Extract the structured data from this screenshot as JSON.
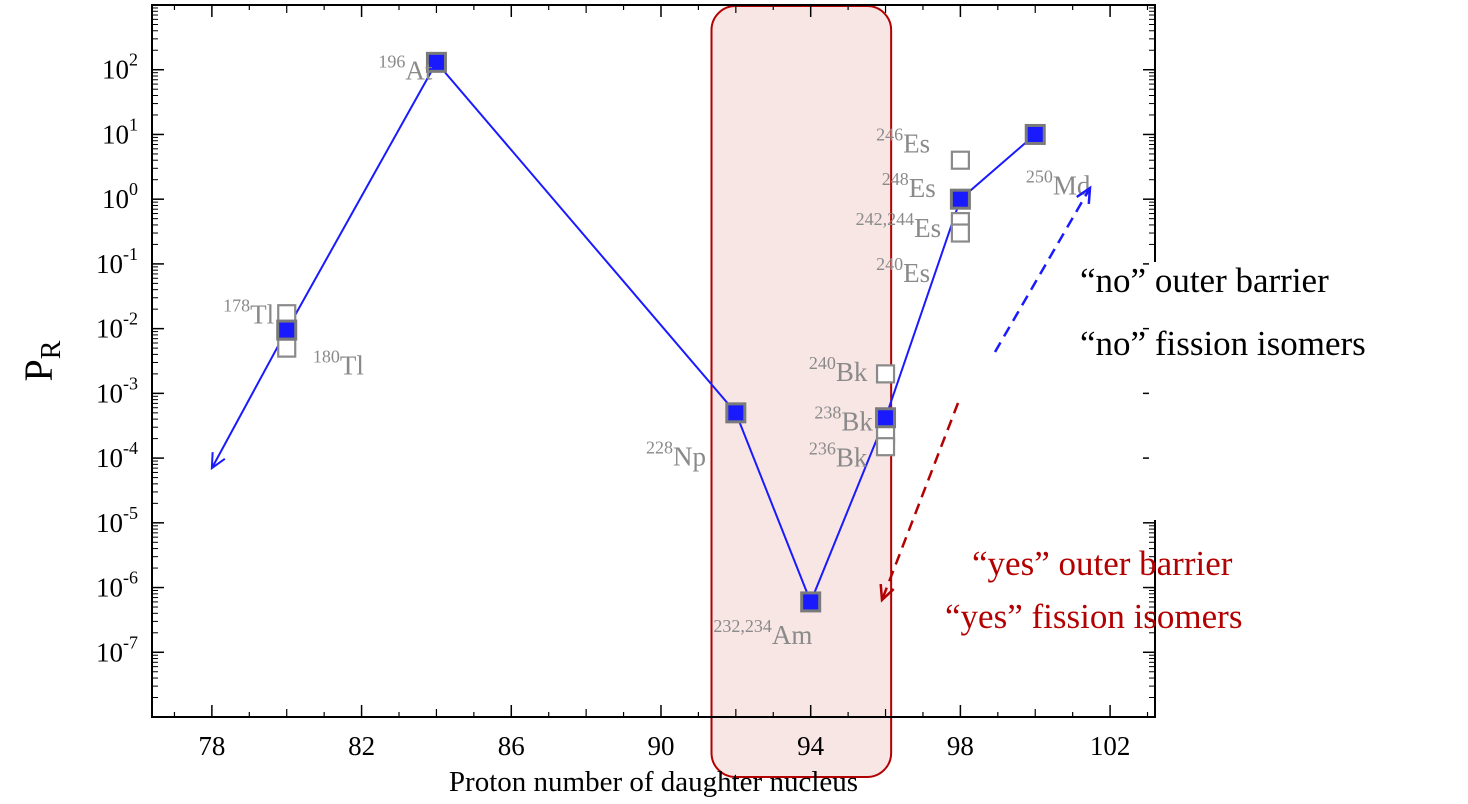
{
  "chart_data": {
    "type": "scatter",
    "xlabel": "Proton number of daughter nucleus",
    "ylabel": "P",
    "ylabel_sub": "R",
    "xlim": [
      76.4,
      103.2
    ],
    "ylim_log10": [
      -8,
      3
    ],
    "y_scale": "log",
    "x_ticks": [
      78,
      82,
      86,
      90,
      94,
      98,
      102
    ],
    "x_tick_labels": [
      "78",
      "82",
      "86",
      "90",
      "94",
      "98",
      "102"
    ],
    "y_ticks": [
      {
        "base": "10",
        "exp": "2",
        "log": 2
      },
      {
        "base": "10",
        "exp": "1",
        "log": 1
      },
      {
        "base": "10",
        "exp": "0",
        "log": 0
      },
      {
        "base": "10",
        "exp": "-1",
        "log": -1
      },
      {
        "base": "10",
        "exp": "-2",
        "log": -2
      },
      {
        "base": "10",
        "exp": "-3",
        "log": -3
      },
      {
        "base": "10",
        "exp": "-4",
        "log": -4
      },
      {
        "base": "10",
        "exp": "-5",
        "log": -5
      },
      {
        "base": "10",
        "exp": "-6",
        "log": -6
      },
      {
        "base": "10",
        "exp": "-7",
        "log": -7
      }
    ],
    "colors": {
      "filled_marker": "#1a1aff",
      "marker_edge": "#7a7a7a",
      "line": "#1a1aff",
      "open_marker": "#8a8a8a",
      "highlight_fill": "#f7e6e4",
      "highlight_edge": "#b30000",
      "red_arrow": "#b30000",
      "blue_arrow": "#1a1aff"
    },
    "series": [
      {
        "marker": "filled-square",
        "points": [
          {
            "x": 80,
            "y": 0.0095
          },
          {
            "x": 84,
            "y": 130
          },
          {
            "x": 92,
            "y": 0.0005
          },
          {
            "x": 94,
            "y": 6e-07
          },
          {
            "x": 96,
            "y": 0.00042
          },
          {
            "x": 98,
            "y": 1.0
          },
          {
            "x": 100,
            "y": 10
          }
        ]
      },
      {
        "marker": "open-square",
        "points": [
          {
            "x": 80,
            "y": 0.017
          },
          {
            "x": 80,
            "y": 0.005
          },
          {
            "x": 96,
            "y": 0.002
          },
          {
            "x": 96,
            "y": 0.00024
          },
          {
            "x": 96,
            "y": 0.00015
          },
          {
            "x": 98,
            "y": 4
          },
          {
            "x": 98,
            "y": 0.45
          },
          {
            "x": 98,
            "y": 0.3
          }
        ]
      }
    ],
    "arrow_extension": {
      "from": {
        "x": 80,
        "y": 0.0095
      },
      "to": {
        "x": 78,
        "y": 7e-05
      }
    },
    "isotope_labels": [
      {
        "mass": "196",
        "symbol": "At",
        "x": 82.45,
        "y": 100
      },
      {
        "mass": "178",
        "symbol": "Tl",
        "x": 78.3,
        "y": 0.017
      },
      {
        "mass": "180",
        "symbol": "Tl",
        "x": 80.7,
        "y": 0.0028
      },
      {
        "mass": "228",
        "symbol": "Np",
        "x": 89.6,
        "y": 0.00011
      },
      {
        "mass": "232,234",
        "symbol": "Am",
        "x": 91.4,
        "y": 1.9e-07
      },
      {
        "mass": "246",
        "symbol": "Es",
        "x": 95.75,
        "y": 7.5
      },
      {
        "mass": "248",
        "symbol": "Es",
        "x": 95.9,
        "y": 1.55
      },
      {
        "mass": "242,244",
        "symbol": "Es",
        "x": 95.2,
        "y": 0.37
      },
      {
        "mass": "240",
        "symbol": "Es",
        "x": 95.75,
        "y": 0.075
      },
      {
        "mass": "240",
        "symbol": "Bk",
        "x": 93.95,
        "y": 0.0022
      },
      {
        "mass": "238",
        "symbol": "Bk",
        "x": 94.1,
        "y": 0.00038
      },
      {
        "mass": "236",
        "symbol": "Bk",
        "x": 93.95,
        "y": 0.000105
      },
      {
        "mass": "250",
        "symbol": "Md",
        "x": 99.75,
        "y": 1.7
      }
    ],
    "annotations": {
      "no_outer_barrier": "“no” outer barrier",
      "no_fission_isomers": "“no” fission isomers",
      "yes_outer_barrier": "“yes” outer barrier",
      "yes_fission_isomers": "“yes” fission isomers"
    }
  }
}
